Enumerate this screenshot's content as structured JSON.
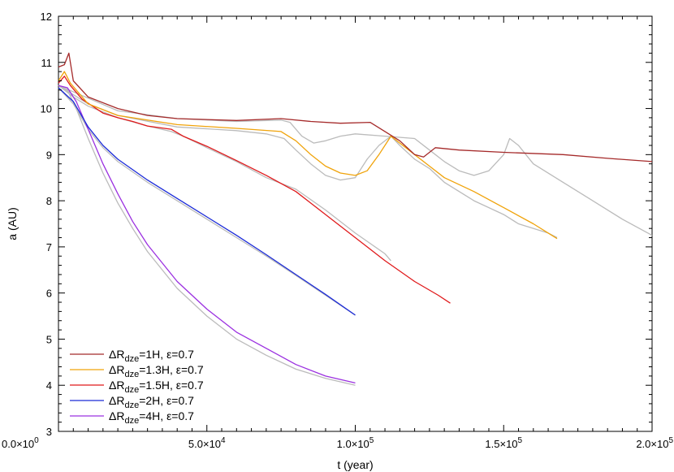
{
  "chart_data": {
    "type": "line",
    "xlabel": "t (year)",
    "ylabel": "a (AU)",
    "xlim": [
      0,
      200000
    ],
    "ylim": [
      3,
      12
    ],
    "x_ticks": [
      {
        "value": 0,
        "label": "0.0×10",
        "exp": "0"
      },
      {
        "value": 50000,
        "label": "5.0×10",
        "exp": "4"
      },
      {
        "value": 100000,
        "label": "1.0×10",
        "exp": "5"
      },
      {
        "value": 150000,
        "label": "1.5×10",
        "exp": "5"
      },
      {
        "value": 200000,
        "label": "2.0×10",
        "exp": "5"
      }
    ],
    "y_ticks": [
      3,
      4,
      5,
      6,
      7,
      8,
      9,
      10,
      11,
      12
    ],
    "grid": false,
    "legend_position": "bottom-left",
    "legend": [
      {
        "pre": "ΔR",
        "sub": "dze",
        "post": "=1H, ε=0.7",
        "color": "#a52a2a"
      },
      {
        "pre": "ΔR",
        "sub": "dze",
        "post": "=1.3H, ε=0.7",
        "color": "#f0a30a"
      },
      {
        "pre": "ΔR",
        "sub": "dze",
        "post": "=1.5H, ε=0.7",
        "color": "#e0191b"
      },
      {
        "pre": "ΔR",
        "sub": "dze",
        "post": "=2H, ε=0.7",
        "color": "#1a2ad8"
      },
      {
        "pre": "ΔR",
        "sub": "dze",
        "post": "=4H, ε=0.7",
        "color": "#9b30e0"
      }
    ],
    "series": [
      {
        "name": "grey-4H",
        "color": "#bbbbbb",
        "points": [
          [
            0,
            10.5
          ],
          [
            3000,
            10.4
          ],
          [
            6000,
            10.0
          ],
          [
            10000,
            9.35
          ],
          [
            15000,
            8.6
          ],
          [
            20000,
            7.95
          ],
          [
            25000,
            7.4
          ],
          [
            30000,
            6.9
          ],
          [
            40000,
            6.1
          ],
          [
            50000,
            5.5
          ],
          [
            60000,
            5.0
          ],
          [
            70000,
            4.65
          ],
          [
            80000,
            4.35
          ],
          [
            90000,
            4.15
          ],
          [
            100000,
            4.0
          ]
        ]
      },
      {
        "name": "grey-2H",
        "color": "#bbbbbb",
        "points": [
          [
            0,
            10.45
          ],
          [
            5000,
            10.1
          ],
          [
            10000,
            9.55
          ],
          [
            15000,
            9.15
          ],
          [
            20000,
            8.85
          ],
          [
            30000,
            8.4
          ],
          [
            40000,
            8.0
          ],
          [
            50000,
            7.6
          ],
          [
            60000,
            7.2
          ],
          [
            70000,
            6.8
          ],
          [
            80000,
            6.38
          ],
          [
            90000,
            5.95
          ],
          [
            100000,
            5.52
          ]
        ]
      },
      {
        "name": "grey-1.5H",
        "color": "#bbbbbb",
        "points": [
          [
            0,
            10.5
          ],
          [
            5000,
            10.25
          ],
          [
            10000,
            10.05
          ],
          [
            20000,
            9.8
          ],
          [
            30000,
            9.62
          ],
          [
            38000,
            9.5
          ],
          [
            42000,
            9.4
          ],
          [
            50000,
            9.15
          ],
          [
            60000,
            8.85
          ],
          [
            70000,
            8.5
          ],
          [
            80000,
            8.25
          ],
          [
            90000,
            7.8
          ],
          [
            100000,
            7.3
          ],
          [
            110000,
            6.85
          ],
          [
            112000,
            6.7
          ]
        ]
      },
      {
        "name": "grey-1.3H",
        "color": "#bbbbbb",
        "points": [
          [
            0,
            10.5
          ],
          [
            10000,
            10.1
          ],
          [
            20000,
            9.85
          ],
          [
            40000,
            9.6
          ],
          [
            60000,
            9.52
          ],
          [
            70000,
            9.45
          ],
          [
            76000,
            9.35
          ],
          [
            80000,
            9.1
          ],
          [
            85000,
            8.8
          ],
          [
            90000,
            8.55
          ],
          [
            95000,
            8.45
          ],
          [
            100000,
            8.5
          ],
          [
            104000,
            8.9
          ],
          [
            108000,
            9.2
          ],
          [
            112000,
            9.4
          ],
          [
            115000,
            9.2
          ],
          [
            120000,
            8.9
          ],
          [
            125000,
            8.7
          ],
          [
            130000,
            8.4
          ],
          [
            140000,
            8.0
          ],
          [
            150000,
            7.7
          ],
          [
            155000,
            7.5
          ],
          [
            165000,
            7.3
          ],
          [
            168000,
            7.2
          ]
        ]
      },
      {
        "name": "grey-1H",
        "color": "#bbbbbb",
        "points": [
          [
            0,
            10.5
          ],
          [
            20000,
            9.95
          ],
          [
            40000,
            9.78
          ],
          [
            60000,
            9.72
          ],
          [
            75000,
            9.75
          ],
          [
            78000,
            9.7
          ],
          [
            82000,
            9.4
          ],
          [
            86000,
            9.25
          ],
          [
            90000,
            9.3
          ],
          [
            95000,
            9.4
          ],
          [
            100000,
            9.45
          ],
          [
            110000,
            9.4
          ],
          [
            120000,
            9.35
          ],
          [
            125000,
            9.1
          ],
          [
            130000,
            8.85
          ],
          [
            135000,
            8.65
          ],
          [
            140000,
            8.55
          ],
          [
            145000,
            8.65
          ],
          [
            150000,
            9.0
          ],
          [
            152000,
            9.35
          ],
          [
            155000,
            9.2
          ],
          [
            160000,
            8.8
          ],
          [
            170000,
            8.4
          ],
          [
            180000,
            8.0
          ],
          [
            190000,
            7.6
          ],
          [
            200000,
            7.25
          ]
        ]
      },
      {
        "name": "4H",
        "color": "#9b30e0",
        "points": [
          [
            0,
            10.5
          ],
          [
            3000,
            10.45
          ],
          [
            6000,
            10.15
          ],
          [
            10000,
            9.55
          ],
          [
            15000,
            8.8
          ],
          [
            20000,
            8.15
          ],
          [
            25000,
            7.55
          ],
          [
            30000,
            7.05
          ],
          [
            40000,
            6.25
          ],
          [
            50000,
            5.65
          ],
          [
            60000,
            5.15
          ],
          [
            70000,
            4.8
          ],
          [
            80000,
            4.45
          ],
          [
            90000,
            4.2
          ],
          [
            100000,
            4.05
          ]
        ]
      },
      {
        "name": "2H",
        "color": "#1a2ad8",
        "points": [
          [
            0,
            10.45
          ],
          [
            5000,
            10.15
          ],
          [
            10000,
            9.6
          ],
          [
            15000,
            9.2
          ],
          [
            20000,
            8.9
          ],
          [
            30000,
            8.45
          ],
          [
            40000,
            8.05
          ],
          [
            50000,
            7.65
          ],
          [
            60000,
            7.25
          ],
          [
            70000,
            6.83
          ],
          [
            80000,
            6.4
          ],
          [
            90000,
            5.97
          ],
          [
            100000,
            5.52
          ]
        ]
      },
      {
        "name": "1.5H",
        "color": "#e0191b",
        "points": [
          [
            0,
            10.55
          ],
          [
            2000,
            10.7
          ],
          [
            4000,
            10.5
          ],
          [
            8000,
            10.2
          ],
          [
            15000,
            9.9
          ],
          [
            20000,
            9.8
          ],
          [
            25000,
            9.72
          ],
          [
            30000,
            9.62
          ],
          [
            38000,
            9.55
          ],
          [
            42000,
            9.4
          ],
          [
            50000,
            9.18
          ],
          [
            60000,
            8.87
          ],
          [
            70000,
            8.55
          ],
          [
            80000,
            8.2
          ],
          [
            90000,
            7.7
          ],
          [
            100000,
            7.2
          ],
          [
            110000,
            6.7
          ],
          [
            120000,
            6.25
          ],
          [
            128000,
            5.95
          ],
          [
            132000,
            5.78
          ]
        ]
      },
      {
        "name": "1.3H",
        "color": "#f0a30a",
        "points": [
          [
            0,
            10.6
          ],
          [
            2000,
            10.8
          ],
          [
            4000,
            10.55
          ],
          [
            10000,
            10.1
          ],
          [
            20000,
            9.85
          ],
          [
            40000,
            9.65
          ],
          [
            60000,
            9.57
          ],
          [
            75000,
            9.5
          ],
          [
            80000,
            9.3
          ],
          [
            85000,
            9.0
          ],
          [
            90000,
            8.75
          ],
          [
            95000,
            8.6
          ],
          [
            100000,
            8.55
          ],
          [
            104000,
            8.65
          ],
          [
            108000,
            9.0
          ],
          [
            112000,
            9.4
          ],
          [
            115000,
            9.25
          ],
          [
            120000,
            9.0
          ],
          [
            125000,
            8.75
          ],
          [
            130000,
            8.5
          ],
          [
            140000,
            8.2
          ],
          [
            150000,
            7.85
          ],
          [
            160000,
            7.5
          ],
          [
            168000,
            7.18
          ]
        ]
      },
      {
        "name": "1H",
        "color": "#a52a2a",
        "points": [
          [
            0,
            10.9
          ],
          [
            2000,
            10.95
          ],
          [
            3500,
            11.2
          ],
          [
            5000,
            10.6
          ],
          [
            10000,
            10.25
          ],
          [
            20000,
            10.0
          ],
          [
            30000,
            9.85
          ],
          [
            40000,
            9.78
          ],
          [
            60000,
            9.74
          ],
          [
            75000,
            9.78
          ],
          [
            85000,
            9.72
          ],
          [
            95000,
            9.68
          ],
          [
            105000,
            9.7
          ],
          [
            110000,
            9.5
          ],
          [
            115000,
            9.3
          ],
          [
            120000,
            9.0
          ],
          [
            123000,
            8.95
          ],
          [
            127000,
            9.15
          ],
          [
            135000,
            9.1
          ],
          [
            150000,
            9.05
          ],
          [
            170000,
            9.0
          ],
          [
            185000,
            8.92
          ],
          [
            200000,
            8.85
          ]
        ]
      }
    ]
  }
}
